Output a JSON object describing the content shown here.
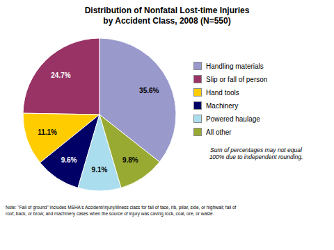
{
  "chart_data": {
    "type": "pie",
    "title": "Distribution of Nonfatal Lost-time Injuries\nby Accident Class, 2008 (N=550)",
    "categories": [
      "Handling materials",
      "Slip or fall of person",
      "Hand tools",
      "Machinery",
      "Powered haulage",
      "All other"
    ],
    "values": [
      35.6,
      24.7,
      11.1,
      9.6,
      9.1,
      9.8
    ],
    "value_labels": [
      "35.6%",
      "24.7%",
      "11.1%",
      "9.6%",
      "9.1%",
      "9.8%"
    ],
    "colors": [
      "#9999CC",
      "#993366",
      "#FFCC00",
      "#000066",
      "#AADDEE",
      "#99AA33"
    ],
    "data_labels": true,
    "legend": "right",
    "annotations": [
      "Sum of percentages may not equal\n100% due to independent rounding.",
      "Note: \"Fall of ground\" includes MSHA's Accident/Injury/Illness class for fall of face, rib, pillar, side, or highwall; fall of\nroof, back, or brow; and machinery cases when the source of injury was caving rock, coal, ore, or waste."
    ]
  }
}
